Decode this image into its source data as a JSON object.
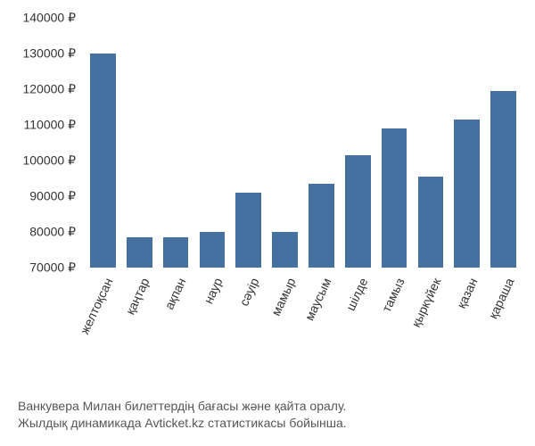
{
  "chart": {
    "type": "bar",
    "categories": [
      "желтоқсан",
      "қаңтар",
      "ақпан",
      "наур",
      "сәуір",
      "мамыр",
      "маусым",
      "шілде",
      "тамыз",
      "қыркүйек",
      "қазан",
      "қараша"
    ],
    "values": [
      130000,
      78500,
      78500,
      80000,
      91000,
      80000,
      93500,
      101500,
      109000,
      95500,
      111500,
      119500
    ],
    "bar_color": "#4471a0",
    "bar_width": 0.7,
    "ylim": [
      70000,
      140000
    ],
    "ytick_step": 10000,
    "y_ticks": [
      70000,
      80000,
      90000,
      100000,
      110000,
      120000,
      130000,
      140000
    ],
    "y_tick_labels": [
      "70000 ₽",
      "80000 ₽",
      "90000 ₽",
      "100000 ₽",
      "110000 ₽",
      "120000 ₽",
      "130000 ₽",
      "140000 ₽"
    ],
    "background_color": "#ffffff",
    "tick_fontsize": 14,
    "tick_color": "#333333",
    "x_tick_rotation": -65
  },
  "caption": {
    "line1": "Ванкувера Милан билеттердің бағасы және қайта оралу.",
    "line2": "Жылдық динамикада Avticket.kz статистикасы бойынша.",
    "fontsize": 14,
    "color": "#555555"
  }
}
